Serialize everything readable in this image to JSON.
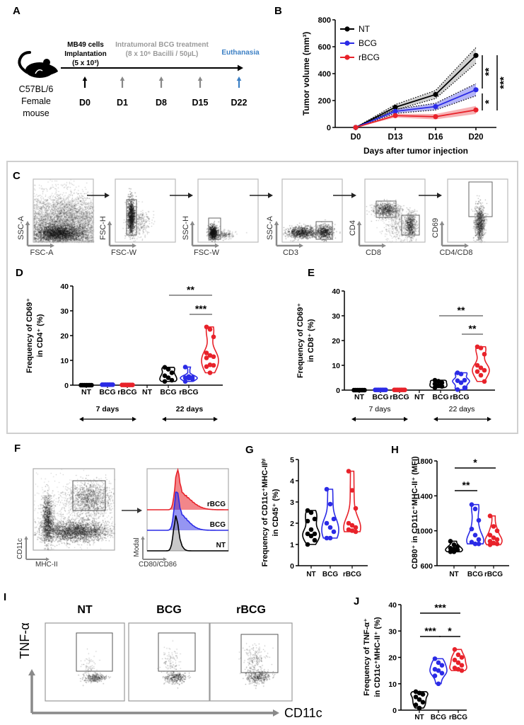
{
  "panel_labels": {
    "A": "A",
    "B": "B",
    "C": "C",
    "D": "D",
    "E": "E",
    "F": "F",
    "G": "G",
    "H": "H",
    "I": "I",
    "J": "J"
  },
  "colors": {
    "NT": "#000000",
    "BCG": "#2b2be6",
    "rBCG": "#e8222a",
    "treatment_text": "#9a9a9a",
    "euthanasia": "#3b7fc4",
    "axis_arrow": "#8a8a8a",
    "frame": "#cfcfcf"
  },
  "panelA": {
    "mouse_label": [
      "C57BL/6",
      "Female",
      "mouse"
    ],
    "implant": [
      "MB49 cells",
      "Implantation",
      "(5 x 10³)"
    ],
    "treatment": [
      "Intratumoral BCG treatment",
      "(8 x 10⁶ Bacilli / 50µL)"
    ],
    "euthanasia": "Euthanasia",
    "days": [
      "D0",
      "D1",
      "D8",
      "D15",
      "D22"
    ],
    "icons": [
      "mouse-icon",
      "arrow-up-icon"
    ]
  },
  "gating": {
    "plots": [
      {
        "y": "SSC-A",
        "x": "FSC-A"
      },
      {
        "y": "FSC-H",
        "x": "FSC-W"
      },
      {
        "y": "SSC-H",
        "x": "FSC-W"
      },
      {
        "y": "SSC-A",
        "x": "CD3"
      },
      {
        "y": "CD4",
        "x": "CD8"
      },
      {
        "y": "CD69",
        "x": "CD4/CD8"
      }
    ]
  },
  "panelF": {
    "scatter_y": "CD11c",
    "scatter_x": "MHC-II",
    "hist_y": "Modal",
    "hist_x": "CD80/CD86",
    "hist_labels": [
      "rBCG",
      "BCG",
      "NT"
    ]
  },
  "panelI": {
    "groups": [
      "NT",
      "BCG",
      "rBCG"
    ],
    "y_axis": "TNF-α",
    "x_axis": "CD11c"
  },
  "chart_data": [
    {
      "panel": "B",
      "type": "line",
      "x": [
        "D0",
        "D13",
        "D16",
        "D20"
      ],
      "xlabel": "Days after tumor injection",
      "ylabel": "Tumor volume (mm³)",
      "ylim": [
        0,
        800
      ],
      "yticks": [
        0,
        200,
        400,
        600,
        800
      ],
      "legend": "top-left",
      "series": [
        {
          "name": "NT",
          "values": [
            0,
            150,
            245,
            535
          ],
          "error": [
            0,
            20,
            30,
            58
          ],
          "color": "#000000"
        },
        {
          "name": "BCG",
          "values": [
            0,
            120,
            155,
            280
          ],
          "error": [
            0,
            15,
            25,
            45
          ],
          "color": "#2b2be6"
        },
        {
          "name": "rBCG",
          "values": [
            0,
            88,
            80,
            130
          ],
          "error": [
            0,
            14,
            20,
            30
          ],
          "color": "#e8222a"
        }
      ],
      "significance": [
        {
          "label": "**",
          "between": [
            "NT",
            "BCG"
          ]
        },
        {
          "label": "*",
          "between": [
            "BCG",
            "rBCG"
          ]
        },
        {
          "label": "***",
          "between": [
            "NT",
            "rBCG"
          ]
        }
      ]
    },
    {
      "panel": "D",
      "type": "violin",
      "ylabel": [
        "Frequency of CD69⁺",
        "in CD4⁺ (%)"
      ],
      "ylim": [
        0,
        40
      ],
      "yticks": [
        0,
        10,
        20,
        30,
        40
      ],
      "tick_labels": [
        "NT",
        "BCG",
        "rBCG",
        "NT",
        "BCG",
        "rBCG"
      ],
      "periods": [
        "7 days",
        "22 days"
      ],
      "groups": [
        {
          "name": "NT",
          "period": "7 days",
          "color": "#000000",
          "values": [
            0,
            0,
            0,
            0,
            0,
            0,
            0
          ]
        },
        {
          "name": "BCG",
          "period": "7 days",
          "color": "#2b2be6",
          "values": [
            0.2,
            0.2,
            0.2,
            0.2,
            0.2,
            0.2,
            0.2
          ]
        },
        {
          "name": "rBCG",
          "period": "7 days",
          "color": "#e8222a",
          "values": [
            0.1,
            0.1,
            0.1,
            0.1,
            0.1,
            0.1,
            0.1
          ]
        },
        {
          "name": "NT",
          "period": "22 days",
          "color": "#000000",
          "values": [
            7.2,
            6.4,
            5.0,
            3.8,
            3.0,
            2.0,
            1.5
          ]
        },
        {
          "name": "BCG",
          "period": "22 days",
          "color": "#2b2be6",
          "values": [
            7.3,
            3.5,
            3.1,
            3.0,
            2.8,
            2.5,
            1.5
          ]
        },
        {
          "name": "rBCG",
          "period": "22 days",
          "color": "#e8222a",
          "values": [
            23.5,
            22.5,
            19.5,
            13.0,
            12.0,
            11.5,
            11.0,
            8.2,
            8.0,
            7.5,
            5.0
          ]
        }
      ],
      "significance": [
        {
          "label": "**",
          "between": [
            3,
            5
          ]
        },
        {
          "label": "***",
          "between": [
            4,
            5
          ]
        }
      ]
    },
    {
      "panel": "E",
      "type": "violin",
      "ylabel": [
        "Frequency of CD69⁺",
        "in CD8⁺ (%)"
      ],
      "ylim": [
        0,
        40
      ],
      "yticks": [
        0,
        10,
        20,
        30,
        40
      ],
      "tick_labels": [
        "NT",
        "BCG",
        "rBCG",
        "NT",
        "BCG",
        "rBCG"
      ],
      "periods": [
        "7 days",
        "22 days"
      ],
      "groups": [
        {
          "name": "NT",
          "period": "7 days",
          "color": "#000000",
          "values": [
            0,
            0,
            0,
            0,
            0,
            0,
            0
          ]
        },
        {
          "name": "BCG",
          "period": "7 days",
          "color": "#2b2be6",
          "values": [
            0.1,
            0.1,
            0.1,
            0.1,
            0.1,
            0.1,
            0.1
          ]
        },
        {
          "name": "rBCG",
          "period": "7 days",
          "color": "#e8222a",
          "values": [
            0.1,
            0.1,
            0.1,
            0.1,
            0.1,
            0.1,
            0.1
          ]
        },
        {
          "name": "NT",
          "period": "22 days",
          "color": "#000000",
          "values": [
            4.0,
            3.6,
            3.0,
            2.5,
            2.0,
            1.5,
            1.0
          ]
        },
        {
          "name": "BCG",
          "period": "22 days",
          "color": "#2b2be6",
          "values": [
            7.0,
            6.5,
            4.0,
            3.8,
            3.0,
            1.0,
            0.2
          ]
        },
        {
          "name": "rBCG",
          "period": "22 days",
          "color": "#e8222a",
          "values": [
            17.5,
            17.0,
            14.5,
            10.0,
            9.0,
            8.0,
            7.5,
            6.0,
            3.5
          ]
        }
      ],
      "significance": [
        {
          "label": "**",
          "between": [
            3,
            5
          ]
        },
        {
          "label": "**",
          "between": [
            4,
            5
          ]
        }
      ]
    },
    {
      "panel": "G",
      "type": "violin",
      "ylabel": [
        "Frequency of CD11c⁺MHC-IIʰⁱ",
        "in CD45⁺ (%)"
      ],
      "ylim": [
        0,
        5
      ],
      "yticks": [
        0,
        1,
        2,
        3,
        4,
        5
      ],
      "tick_labels": [
        "NT",
        "BCG",
        "rBCG"
      ],
      "groups": [
        {
          "name": "NT",
          "color": "#000000",
          "values": [
            2.6,
            2.5,
            2.2,
            2.1,
            1.7,
            1.5,
            1.5,
            1.4,
            1.2,
            1.0
          ]
        },
        {
          "name": "BCG",
          "color": "#2b2be6",
          "values": [
            3.6,
            2.9,
            2.2,
            2.0,
            1.8,
            1.6,
            1.3,
            1.3
          ]
        },
        {
          "name": "rBCG",
          "color": "#e8222a",
          "values": [
            4.45,
            3.55,
            2.7,
            2.0,
            1.9,
            1.8,
            1.7,
            1.65,
            1.6
          ]
        }
      ],
      "significance": []
    },
    {
      "panel": "H",
      "type": "violin",
      "ylabel": [
        "CD80⁺ in CD11c⁺MHC-II⁺ (MFI)"
      ],
      "ylim": [
        600,
        1800
      ],
      "yticks": [
        600,
        1000,
        1400,
        1800
      ],
      "tick_labels": [
        "NT",
        "BCG",
        "rBCG"
      ],
      "groups": [
        {
          "name": "NT",
          "color": "#000000",
          "values": [
            880,
            840,
            820,
            800,
            790,
            780,
            760,
            760
          ]
        },
        {
          "name": "BCG",
          "color": "#2b2be6",
          "values": [
            1300,
            1250,
            1120,
            1020,
            950,
            900,
            870,
            850,
            850
          ]
        },
        {
          "name": "rBCG",
          "color": "#e8222a",
          "values": [
            1170,
            1050,
            1000,
            950,
            920,
            900,
            880,
            860,
            850,
            840
          ]
        }
      ],
      "significance": [
        {
          "label": "*",
          "between": [
            0,
            2
          ]
        },
        {
          "label": "**",
          "between": [
            0,
            1
          ]
        }
      ]
    },
    {
      "panel": "J",
      "type": "violin",
      "ylabel": [
        "Frequency of TNF-α⁺",
        "in CD11c⁺MHC-II⁺ (%)"
      ],
      "ylim": [
        0,
        40
      ],
      "yticks": [
        0,
        10,
        20,
        30,
        40
      ],
      "tick_labels": [
        "NT",
        "BCG",
        "rBCG"
      ],
      "groups": [
        {
          "name": "NT",
          "color": "#000000",
          "values": [
            7.0,
            6.5,
            6.0,
            5.0,
            4.0,
            3.0,
            2.0,
            0.8
          ]
        },
        {
          "name": "BCG",
          "color": "#2b2be6",
          "values": [
            19.5,
            18.0,
            17.0,
            15.5,
            15.0,
            14.0,
            13.0,
            10.0
          ]
        },
        {
          "name": "rBCG",
          "color": "#e8222a",
          "values": [
            23.0,
            21.0,
            20.0,
            19.0,
            18.0,
            17.0,
            16.0,
            15.5,
            15.0
          ]
        }
      ],
      "significance": [
        {
          "label": "***",
          "between": [
            0,
            2
          ]
        },
        {
          "label": "***",
          "between": [
            0,
            1
          ]
        },
        {
          "label": "*",
          "between": [
            1,
            2
          ]
        }
      ]
    }
  ]
}
